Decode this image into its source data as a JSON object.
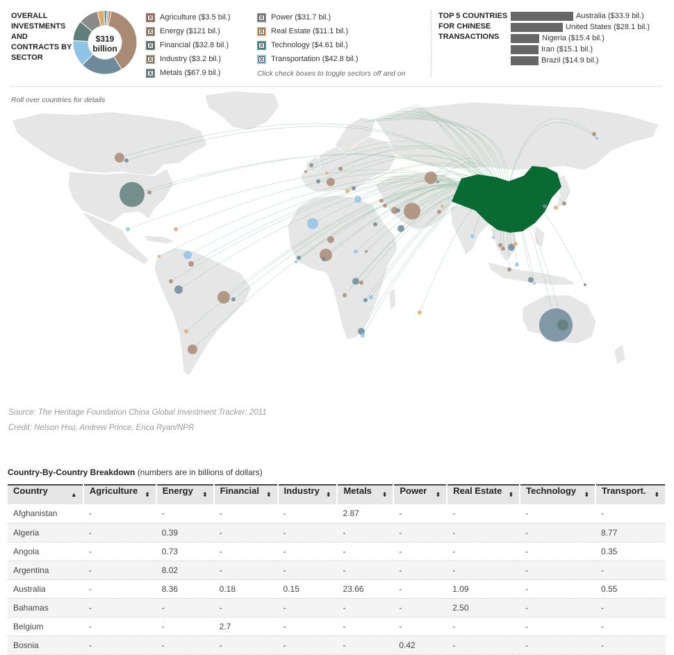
{
  "header": {
    "title": "OVERALL INVESTMENTS AND CONTRACTS BY SECTOR",
    "total_value": "$319",
    "total_unit": "billion",
    "hint": "Click check boxes to toggle sectors off and on",
    "check_mark": "x"
  },
  "sectors": [
    {
      "label": "Agriculture ($3.5 bil.)",
      "value": 3.5,
      "color": "#b5705f"
    },
    {
      "label": "Energy ($121 bil.)",
      "value": 121,
      "color": "#a98a75"
    },
    {
      "label": "Financial ($32.8 bil.)",
      "value": 32.8,
      "color": "#5f7f7a"
    },
    {
      "label": "Industry ($3.2 bil.)",
      "value": 3.2,
      "color": "#b59e72"
    },
    {
      "label": "Metals ($67.9 bil.)",
      "value": 67.9,
      "color": "#6f8a9a"
    },
    {
      "label": "Power ($31.7 bil.)",
      "value": 31.7,
      "color": "#8a8a8a"
    },
    {
      "label": "Real Estate ($11.1 bil.)",
      "value": 11.1,
      "color": "#e3a86a"
    },
    {
      "label": "Technology ($4.61 bil.)",
      "value": 4.61,
      "color": "#4f9a96"
    },
    {
      "label": "Transportation ($42.8 bil.)",
      "value": 42.8,
      "color": "#8fc4e6"
    }
  ],
  "top5": {
    "title": "TOP 5 COUNTRIES FOR CHINESE TRANSACTIONS",
    "max": 33.9,
    "items": [
      {
        "label": "Australia ($33.9 bil.)",
        "value": 33.9
      },
      {
        "label": "United States ($28.1 bil.)",
        "value": 28.1
      },
      {
        "label": "Nigeria ($15.4 bil.)",
        "value": 15.4
      },
      {
        "label": "Iran ($15.1 bil.)",
        "value": 15.1
      },
      {
        "label": "Brazil ($14.9 bil.)",
        "value": 14.9
      }
    ]
  },
  "map": {
    "instruction": "Roll over countries for details",
    "colors": {
      "land": "#e6e6e6",
      "china": "#0a6b32",
      "flow": "#86b89a"
    }
  },
  "source": "Source: The Heritage Foundation China Global Investment Tracker: 2011",
  "credit": "Credit: Nelson Hsu, Andrew Prince, Erica Ryan/NPR",
  "table": {
    "title": "Country-By-Country Breakdown",
    "note": "(numbers are in billions of dollars)",
    "sort_asc": "▲",
    "sort_both": "⬍",
    "columns": [
      "Country",
      "Agriculture",
      "Energy",
      "Financial",
      "Industry",
      "Metals",
      "Power",
      "Real Estate",
      "Technology",
      "Transport."
    ],
    "rows": [
      [
        "Afghanistan",
        "-",
        "-",
        "-",
        "-",
        "2.87",
        "-",
        "-",
        "-",
        "-"
      ],
      [
        "Algeria",
        "-",
        "0.39",
        "-",
        "-",
        "-",
        "-",
        "-",
        "-",
        "8.77"
      ],
      [
        "Angola",
        "-",
        "0.73",
        "-",
        "-",
        "-",
        "-",
        "-",
        "-",
        "0.35"
      ],
      [
        "Argentina",
        "-",
        "8.02",
        "-",
        "-",
        "-",
        "-",
        "-",
        "-",
        "-"
      ],
      [
        "Australia",
        "-",
        "8.36",
        "0.18",
        "0.15",
        "23.66",
        "-",
        "1.09",
        "-",
        "0.55"
      ],
      [
        "Bahamas",
        "-",
        "-",
        "-",
        "-",
        "-",
        "-",
        "2.50",
        "-",
        "-"
      ],
      [
        "Belgium",
        "-",
        "-",
        "2.7",
        "-",
        "-",
        "-",
        "-",
        "-",
        "-"
      ],
      [
        "Bosnia",
        "-",
        "-",
        "-",
        "-",
        "-",
        "0.42",
        "-",
        "-",
        "-"
      ]
    ]
  }
}
